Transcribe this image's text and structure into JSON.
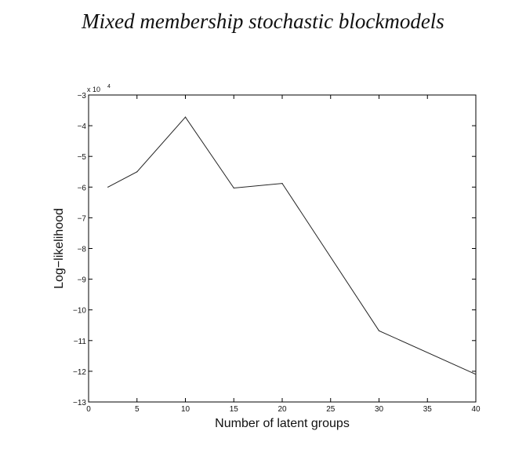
{
  "header": {
    "title": "Mixed membership stochastic blockmodels"
  },
  "chart_data": {
    "type": "line",
    "title": "",
    "xlabel": "Number of latent groups",
    "ylabel": "Log−likelihood",
    "multiplier_base": "x 10",
    "multiplier_exp": "4",
    "xlim": [
      0,
      40
    ],
    "ylim": [
      -13,
      -3
    ],
    "xticks": [
      0,
      5,
      10,
      15,
      20,
      25,
      30,
      35,
      40
    ],
    "yticks": [
      -3,
      -4,
      -5,
      -6,
      -7,
      -8,
      -9,
      -10,
      -11,
      -12,
      -13
    ],
    "series": [
      {
        "x": [
          2,
          5,
          10,
          15,
          20,
          30,
          40
        ],
        "y": [
          -6.0,
          -5.5,
          -3.72,
          -6.03,
          -5.88,
          -10.68,
          -12.1
        ]
      }
    ],
    "line_color": "#222222",
    "grid": false
  }
}
